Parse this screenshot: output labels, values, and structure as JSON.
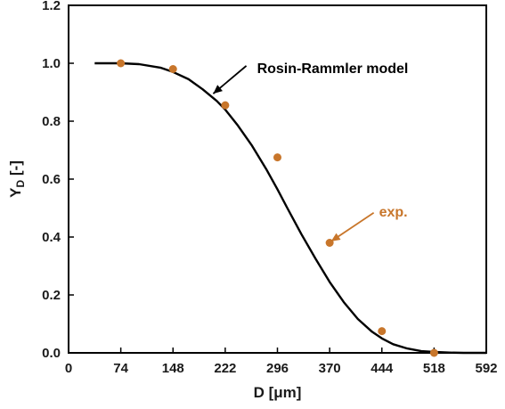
{
  "chart_data": {
    "type": "scatter",
    "xlabel": "D [μm]",
    "ylabel_main": "Y",
    "ylabel_sub": "D",
    "ylabel_rest": " [-]",
    "xlim": [
      0,
      592
    ],
    "ylim": [
      0,
      1.2
    ],
    "x_ticks": [
      0,
      74,
      148,
      222,
      296,
      370,
      444,
      518,
      592
    ],
    "x_tick_labels": [
      "0",
      "74",
      "148",
      "222",
      "296",
      "370",
      "444",
      "518",
      "592"
    ],
    "y_ticks": [
      0,
      0.2,
      0.4,
      0.6,
      0.8,
      1.0,
      1.2
    ],
    "y_tick_labels": [
      "0.0",
      "0.2",
      "0.4",
      "0.6",
      "0.8",
      "1.0",
      "1.2"
    ],
    "grid": false,
    "legend": "none",
    "series": [
      {
        "name": "exp.",
        "kind": "points",
        "color": "#c8762b",
        "x": [
          74,
          148,
          222,
          296,
          370,
          444,
          518
        ],
        "y": [
          1.0,
          0.98,
          0.855,
          0.675,
          0.38,
          0.075,
          0.0
        ]
      },
      {
        "name": "Rosin-Rammler model",
        "kind": "line",
        "color": "#000000",
        "x": [
          37,
          60,
          74,
          100,
          130,
          148,
          170,
          190,
          210,
          222,
          240,
          260,
          280,
          296,
          310,
          330,
          350,
          370,
          390,
          410,
          430,
          444,
          460,
          480,
          500,
          518,
          540,
          560,
          575,
          592
        ],
        "y": [
          1.0,
          1.0,
          1.0,
          0.997,
          0.985,
          0.97,
          0.945,
          0.91,
          0.87,
          0.84,
          0.785,
          0.715,
          0.635,
          0.565,
          0.5,
          0.41,
          0.325,
          0.245,
          0.175,
          0.117,
          0.073,
          0.05,
          0.03,
          0.015,
          0.006,
          0.003,
          0.001,
          0.0,
          0.0,
          0.0
        ]
      }
    ],
    "annotations": [
      {
        "text": "Rosin-Rammler model",
        "color": "#000000",
        "target": [
          205,
          0.895
        ],
        "label_at": [
          262,
          0.985
        ]
      },
      {
        "text": "exp.",
        "color": "#c8762b",
        "target": [
          372,
          0.385
        ],
        "label_at": [
          435,
          0.49
        ]
      }
    ]
  }
}
